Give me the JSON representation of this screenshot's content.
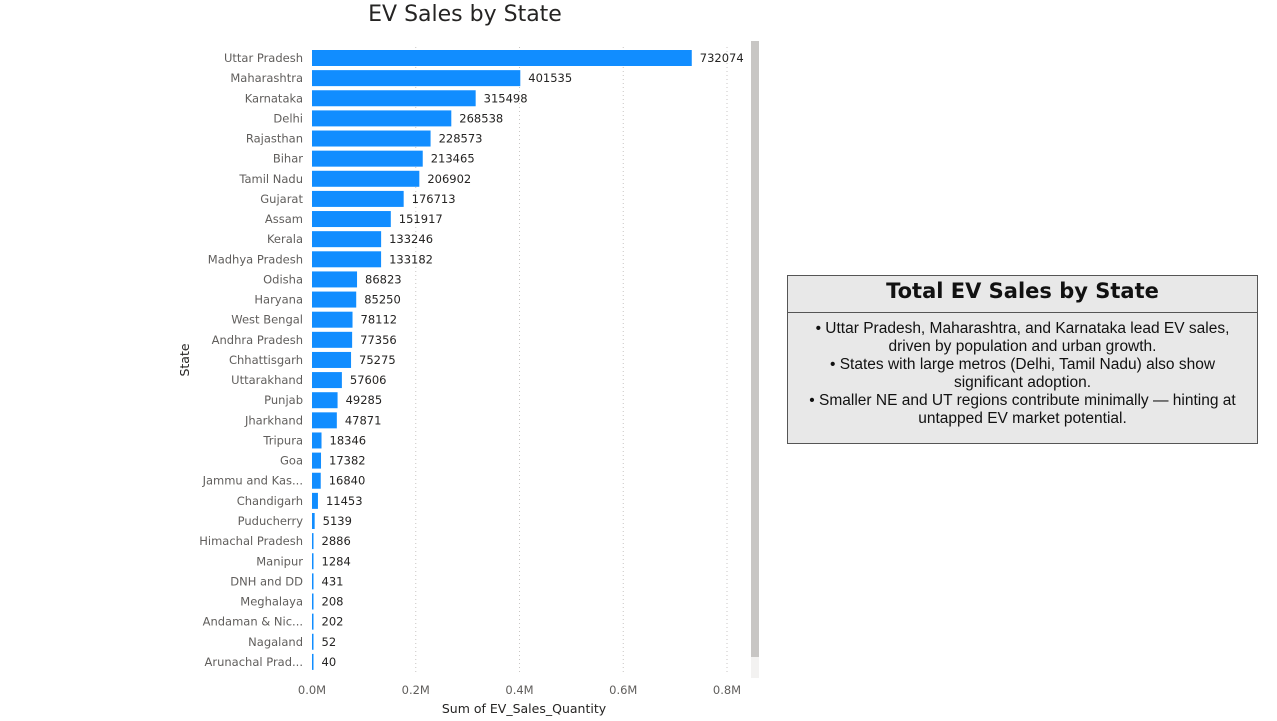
{
  "chart_data": {
    "type": "bar",
    "orientation": "horizontal",
    "title": "EV Sales by State",
    "xlabel": "Sum of EV_Sales_Quantity",
    "ylabel": "State",
    "xlim": [
      0,
      800000
    ],
    "x_ticks": [
      0,
      200000,
      400000,
      600000,
      800000
    ],
    "x_tick_labels": [
      "0.0M",
      "0.2M",
      "0.4M",
      "0.6M",
      "0.8M"
    ],
    "grid": true,
    "bar_color": "#118dff",
    "categories": [
      "Uttar Pradesh",
      "Maharashtra",
      "Karnataka",
      "Delhi",
      "Rajasthan",
      "Bihar",
      "Tamil Nadu",
      "Gujarat",
      "Assam",
      "Kerala",
      "Madhya Pradesh",
      "Odisha",
      "Haryana",
      "West Bengal",
      "Andhra Pradesh",
      "Chhattisgarh",
      "Uttarakhand",
      "Punjab",
      "Jharkhand",
      "Tripura",
      "Goa",
      "Jammu and Kas...",
      "Chandigarh",
      "Puducherry",
      "Himachal Pradesh",
      "Manipur",
      "DNH and DD",
      "Meghalaya",
      "Andaman & Nic...",
      "Nagaland",
      "Arunachal Prad..."
    ],
    "values": [
      732074,
      401535,
      315498,
      268538,
      228573,
      213465,
      206902,
      176713,
      151917,
      133246,
      133182,
      86823,
      85250,
      78112,
      77356,
      75275,
      57606,
      49285,
      47871,
      18346,
      17382,
      16840,
      11453,
      5139,
      2886,
      1284,
      431,
      208,
      202,
      52,
      40
    ]
  },
  "summary": {
    "title": "Total EV Sales by State",
    "lines": [
      "• Uttar Pradesh, Maharashtra, and Karnataka lead EV sales,",
      "driven by population and urban growth.",
      "• States with large metros (Delhi, Tamil Nadu) also show",
      "significant adoption.",
      "• Smaller NE and UT regions contribute minimally — hinting at",
      "untapped EV market potential."
    ]
  }
}
